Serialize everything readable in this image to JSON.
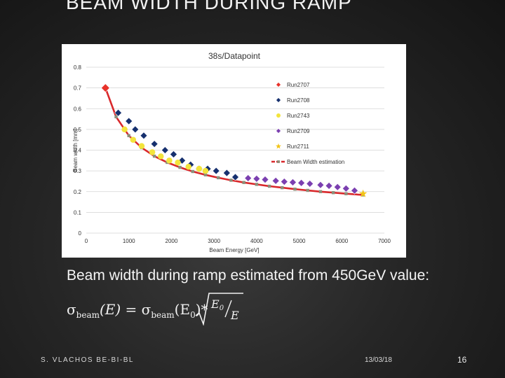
{
  "slide": {
    "title": "BEAM WIDTH DURING RAMP",
    "caption": "Beam width during ramp estimated from 450GeV value:",
    "formula": {
      "lhs": "σ",
      "lhs_sub": "beam",
      "lhs_arg": "(E) = ",
      "rhs": "σ",
      "rhs_sub": "beam",
      "rhs_arg": "(E",
      "rhs_arg_sub": "0",
      "rhs_arg_close": ")*",
      "numerator": "E",
      "numerator_sub": "0",
      "denominator": "E"
    },
    "footer": {
      "author": "S. VLACHOS BE-BI-BL",
      "date": "13/03/18",
      "page": "16"
    }
  },
  "chart_data": {
    "type": "scatter",
    "title": "38s/Datapoint",
    "xlabel": "Beam Energy [GeV]",
    "ylabel": "Beam width [mm]",
    "xlim": [
      0,
      7000
    ],
    "ylim": [
      0,
      0.8
    ],
    "xticks": [
      "0",
      "1000",
      "2000",
      "3000",
      "4000",
      "5000",
      "6000",
      "7000"
    ],
    "yticks": [
      "0",
      "0.1",
      "0.2",
      "0.3",
      "0.4",
      "0.5",
      "0.6",
      "0.7",
      "0.8"
    ],
    "legend_position": "right",
    "series": [
      {
        "name": "Run2707",
        "marker": "diamond",
        "color": "#e8322a",
        "points": [
          [
            450,
            0.7
          ]
        ]
      },
      {
        "name": "Run2708",
        "marker": "diamond",
        "color": "#16306e",
        "points": [
          [
            750,
            0.58
          ],
          [
            1000,
            0.54
          ],
          [
            1150,
            0.5
          ],
          [
            1350,
            0.47
          ],
          [
            1600,
            0.43
          ],
          [
            1850,
            0.4
          ],
          [
            2050,
            0.38
          ],
          [
            2250,
            0.35
          ],
          [
            2450,
            0.33
          ],
          [
            2650,
            0.31
          ],
          [
            2850,
            0.31
          ],
          [
            3050,
            0.3
          ],
          [
            3300,
            0.29
          ],
          [
            3500,
            0.27
          ]
        ]
      },
      {
        "name": "Run2743",
        "marker": "circle",
        "color": "#f3e43c",
        "points": [
          [
            900,
            0.5
          ],
          [
            1100,
            0.45
          ],
          [
            1300,
            0.42
          ],
          [
            1550,
            0.39
          ],
          [
            1750,
            0.37
          ],
          [
            1950,
            0.35
          ],
          [
            2150,
            0.34
          ],
          [
            2400,
            0.32
          ],
          [
            2650,
            0.31
          ],
          [
            2800,
            0.3
          ]
        ]
      },
      {
        "name": "Run2709",
        "marker": "diamond",
        "color": "#7b3fb0",
        "points": [
          [
            3800,
            0.265
          ],
          [
            4000,
            0.262
          ],
          [
            4200,
            0.258
          ],
          [
            4450,
            0.252
          ],
          [
            4650,
            0.248
          ],
          [
            4850,
            0.245
          ],
          [
            5050,
            0.242
          ],
          [
            5250,
            0.238
          ],
          [
            5500,
            0.232
          ],
          [
            5700,
            0.228
          ],
          [
            5900,
            0.222
          ],
          [
            6100,
            0.215
          ],
          [
            6300,
            0.205
          ]
        ]
      },
      {
        "name": "Run2711",
        "marker": "star",
        "color": "#f2c418",
        "points": [
          [
            6500,
            0.19
          ]
        ]
      },
      {
        "name": "Beam Width estimation",
        "marker": "square",
        "color": "#d9282b",
        "marker_color": "#8c8f7a",
        "line": true,
        "points": [
          [
            450,
            0.7
          ],
          [
            700,
            0.561
          ],
          [
            1000,
            0.47
          ],
          [
            1300,
            0.412
          ],
          [
            1600,
            0.371
          ],
          [
            1900,
            0.341
          ],
          [
            2200,
            0.317
          ],
          [
            2500,
            0.297
          ],
          [
            2800,
            0.281
          ],
          [
            3100,
            0.267
          ],
          [
            3400,
            0.255
          ],
          [
            3700,
            0.244
          ],
          [
            4000,
            0.235
          ],
          [
            4300,
            0.226
          ],
          [
            4600,
            0.219
          ],
          [
            4900,
            0.212
          ],
          [
            5200,
            0.206
          ],
          [
            5500,
            0.2
          ],
          [
            5800,
            0.195
          ],
          [
            6100,
            0.19
          ],
          [
            6500,
            0.184
          ]
        ]
      }
    ]
  }
}
